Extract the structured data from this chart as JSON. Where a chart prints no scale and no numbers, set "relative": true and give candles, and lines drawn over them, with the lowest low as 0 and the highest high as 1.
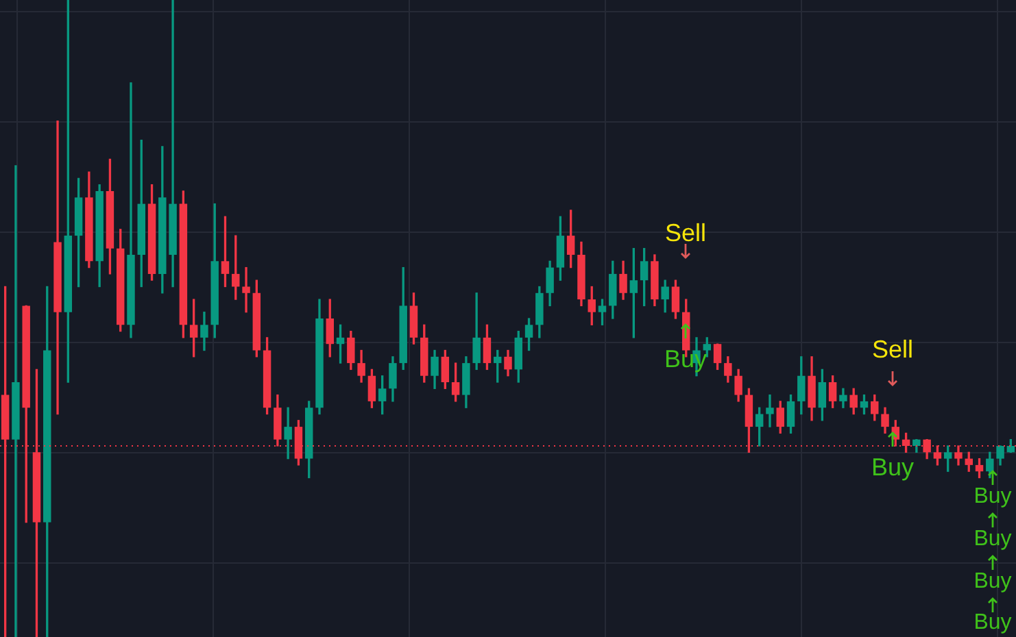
{
  "chart_data": {
    "type": "candlestick",
    "relative": true,
    "grid": true,
    "legend": false,
    "categories": [
      null,
      null,
      null,
      null,
      null,
      null,
      null,
      null,
      null,
      null,
      null,
      null,
      null,
      null,
      null,
      null,
      null,
      null,
      null,
      null,
      null,
      null,
      null,
      null,
      null,
      null,
      null,
      null,
      null,
      null,
      null,
      null,
      null,
      null,
      null,
      null,
      null,
      null,
      null,
      null,
      null,
      null,
      null,
      null,
      null,
      null,
      null,
      null,
      null,
      null,
      null,
      null,
      null,
      null,
      null,
      null,
      null,
      null,
      null,
      null,
      null,
      null,
      null,
      null,
      null,
      null,
      null,
      null,
      null,
      null,
      null,
      null,
      null,
      null,
      null,
      null,
      null,
      null,
      null,
      null,
      null,
      null,
      null,
      null,
      null,
      null,
      null,
      null,
      null,
      null,
      null,
      null,
      null,
      null,
      null,
      null,
      null
    ],
    "ohlc": [
      [
        0.38,
        0.55,
        0,
        0.31
      ],
      [
        0.31,
        0.74,
        0,
        0.4
      ],
      [
        0.52,
        0.52,
        0.18,
        0.36
      ],
      [
        0.29,
        0.42,
        0,
        0.18
      ],
      [
        0.18,
        0.55,
        0,
        0.45
      ],
      [
        0.62,
        0.81,
        0.35,
        0.51
      ],
      [
        0.51,
        1,
        0.4,
        0.63
      ],
      [
        0.63,
        0.72,
        0.55,
        0.69
      ],
      [
        0.69,
        0.73,
        0.58,
        0.59
      ],
      [
        0.59,
        0.71,
        0.55,
        0.7
      ],
      [
        0.7,
        0.75,
        0.57,
        0.61
      ],
      [
        0.61,
        0.64,
        0.48,
        0.49
      ],
      [
        0.49,
        0.87,
        0.47,
        0.6
      ],
      [
        0.6,
        0.78,
        0.55,
        0.68
      ],
      [
        0.68,
        0.71,
        0.56,
        0.57
      ],
      [
        0.57,
        0.77,
        0.54,
        0.69
      ],
      [
        0.6,
        1,
        0.55,
        0.68
      ],
      [
        0.68,
        0.7,
        0.47,
        0.49
      ],
      [
        0.49,
        0.53,
        0.44,
        0.47
      ],
      [
        0.47,
        0.51,
        0.45,
        0.49
      ],
      [
        0.49,
        0.68,
        0.47,
        0.59
      ],
      [
        0.59,
        0.66,
        0.55,
        0.57
      ],
      [
        0.57,
        0.63,
        0.53,
        0.55
      ],
      [
        0.55,
        0.58,
        0.51,
        0.54
      ],
      [
        0.54,
        0.56,
        0.44,
        0.45
      ],
      [
        0.45,
        0.47,
        0.35,
        0.36
      ],
      [
        0.36,
        0.38,
        0.3,
        0.31
      ],
      [
        0.31,
        0.36,
        0.28,
        0.33
      ],
      [
        0.33,
        0.34,
        0.27,
        0.28
      ],
      [
        0.28,
        0.37,
        0.25,
        0.36
      ],
      [
        0.36,
        0.53,
        0.35,
        0.5
      ],
      [
        0.5,
        0.53,
        0.44,
        0.46
      ],
      [
        0.46,
        0.49,
        0.43,
        0.47
      ],
      [
        0.47,
        0.48,
        0.42,
        0.43
      ],
      [
        0.43,
        0.45,
        0.4,
        0.41
      ],
      [
        0.41,
        0.42,
        0.36,
        0.37
      ],
      [
        0.37,
        0.41,
        0.35,
        0.39
      ],
      [
        0.39,
        0.44,
        0.37,
        0.43
      ],
      [
        0.43,
        0.58,
        0.42,
        0.52
      ],
      [
        0.52,
        0.54,
        0.46,
        0.47
      ],
      [
        0.47,
        0.49,
        0.4,
        0.41
      ],
      [
        0.41,
        0.45,
        0.39,
        0.44
      ],
      [
        0.44,
        0.45,
        0.39,
        0.4
      ],
      [
        0.4,
        0.43,
        0.37,
        0.38
      ],
      [
        0.38,
        0.44,
        0.36,
        0.43
      ],
      [
        0.43,
        0.54,
        0.42,
        0.47
      ],
      [
        0.47,
        0.49,
        0.42,
        0.43
      ],
      [
        0.43,
        0.45,
        0.4,
        0.44
      ],
      [
        0.44,
        0.45,
        0.41,
        0.42
      ],
      [
        0.42,
        0.48,
        0.4,
        0.47
      ],
      [
        0.47,
        0.5,
        0.45,
        0.49
      ],
      [
        0.49,
        0.55,
        0.47,
        0.54
      ],
      [
        0.54,
        0.59,
        0.52,
        0.58
      ],
      [
        0.58,
        0.66,
        0.56,
        0.63
      ],
      [
        0.63,
        0.67,
        0.58,
        0.6
      ],
      [
        0.6,
        0.62,
        0.52,
        0.53
      ],
      [
        0.53,
        0.55,
        0.49,
        0.51
      ],
      [
        0.51,
        0.53,
        0.49,
        0.52
      ],
      [
        0.52,
        0.59,
        0.5,
        0.57
      ],
      [
        0.57,
        0.59,
        0.53,
        0.54
      ],
      [
        0.54,
        0.61,
        0.47,
        0.56
      ],
      [
        0.56,
        0.61,
        0.52,
        0.59
      ],
      [
        0.59,
        0.6,
        0.52,
        0.53
      ],
      [
        0.53,
        0.56,
        0.51,
        0.55
      ],
      [
        0.55,
        0.56,
        0.5,
        0.51
      ],
      [
        0.51,
        0.53,
        0.44,
        0.45
      ],
      [
        0.43,
        0.47,
        0.41,
        0.45
      ],
      [
        0.45,
        0.47,
        0.44,
        0.46
      ],
      [
        0.46,
        0.46,
        0.42,
        0.43
      ],
      [
        0.43,
        0.44,
        0.4,
        0.41
      ],
      [
        0.41,
        0.42,
        0.37,
        0.38
      ],
      [
        0.38,
        0.39,
        0.29,
        0.33
      ],
      [
        0.33,
        0.36,
        0.3,
        0.35
      ],
      [
        0.35,
        0.38,
        0.33,
        0.36
      ],
      [
        0.36,
        0.37,
        0.32,
        0.33
      ],
      [
        0.33,
        0.38,
        0.32,
        0.37
      ],
      [
        0.37,
        0.44,
        0.35,
        0.41
      ],
      [
        0.41,
        0.44,
        0.34,
        0.36
      ],
      [
        0.36,
        0.42,
        0.34,
        0.4
      ],
      [
        0.4,
        0.41,
        0.36,
        0.37
      ],
      [
        0.37,
        0.39,
        0.36,
        0.38
      ],
      [
        0.38,
        0.39,
        0.35,
        0.36
      ],
      [
        0.36,
        0.38,
        0.35,
        0.37
      ],
      [
        0.37,
        0.38,
        0.34,
        0.35
      ],
      [
        0.35,
        0.36,
        0.32,
        0.33
      ],
      [
        0.33,
        0.34,
        0.3,
        0.31
      ],
      [
        0.31,
        0.32,
        0.29,
        0.3
      ],
      [
        0.3,
        0.31,
        0.29,
        0.31
      ],
      [
        0.31,
        0.31,
        0.28,
        0.29
      ],
      [
        0.29,
        0.3,
        0.27,
        0.28
      ],
      [
        0.28,
        0.3,
        0.26,
        0.29
      ],
      [
        0.29,
        0.3,
        0.27,
        0.28
      ],
      [
        0.28,
        0.29,
        0.26,
        0.27
      ],
      [
        0.27,
        0.28,
        0.25,
        0.26
      ],
      [
        0.26,
        0.29,
        0.25,
        0.28
      ],
      [
        0.28,
        0.3,
        0.27,
        0.3
      ],
      [
        0.29,
        0.31,
        0.29,
        0.3
      ]
    ],
    "ref_lines": [
      {
        "axis": "y",
        "value": 0.3,
        "color": "#f23645",
        "line_style": "dotted"
      }
    ],
    "annotations": [
      "Sell",
      "Buy",
      "Sell",
      "Buy",
      "Buy",
      "Buy",
      "Buy",
      "Buy"
    ]
  }
}
